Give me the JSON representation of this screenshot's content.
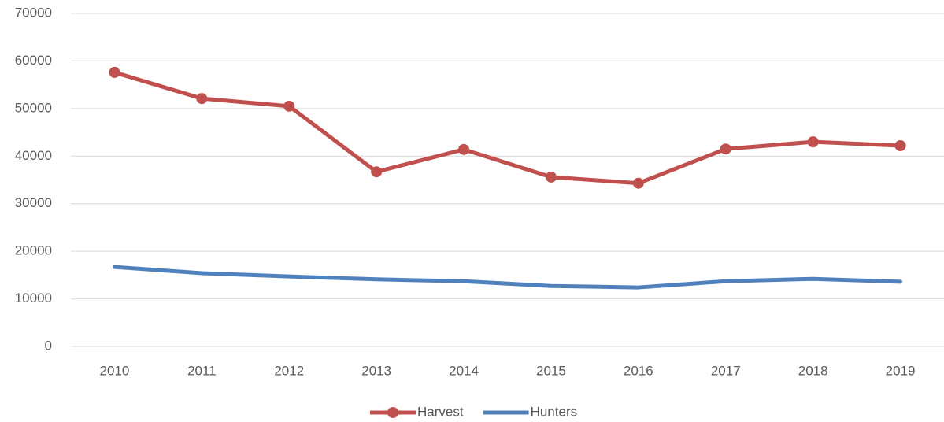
{
  "chart_data": {
    "type": "line",
    "categories": [
      "2010",
      "2011",
      "2012",
      "2013",
      "2014",
      "2015",
      "2016",
      "2017",
      "2018",
      "2019"
    ],
    "series": [
      {
        "name": "Harvest",
        "color": "#c0504d",
        "marker": true,
        "values": [
          57600,
          52100,
          50500,
          36700,
          41400,
          35600,
          34300,
          41500,
          43000,
          42200
        ]
      },
      {
        "name": "Hunters",
        "color": "#4f81bd",
        "marker": false,
        "values": [
          16700,
          15400,
          14700,
          14100,
          13700,
          12700,
          12400,
          13700,
          14200,
          13600
        ]
      }
    ],
    "ylim": [
      0,
      70000
    ],
    "yticks": [
      0,
      10000,
      20000,
      30000,
      40000,
      50000,
      60000,
      70000
    ],
    "grid": true,
    "legend": "bottom"
  }
}
